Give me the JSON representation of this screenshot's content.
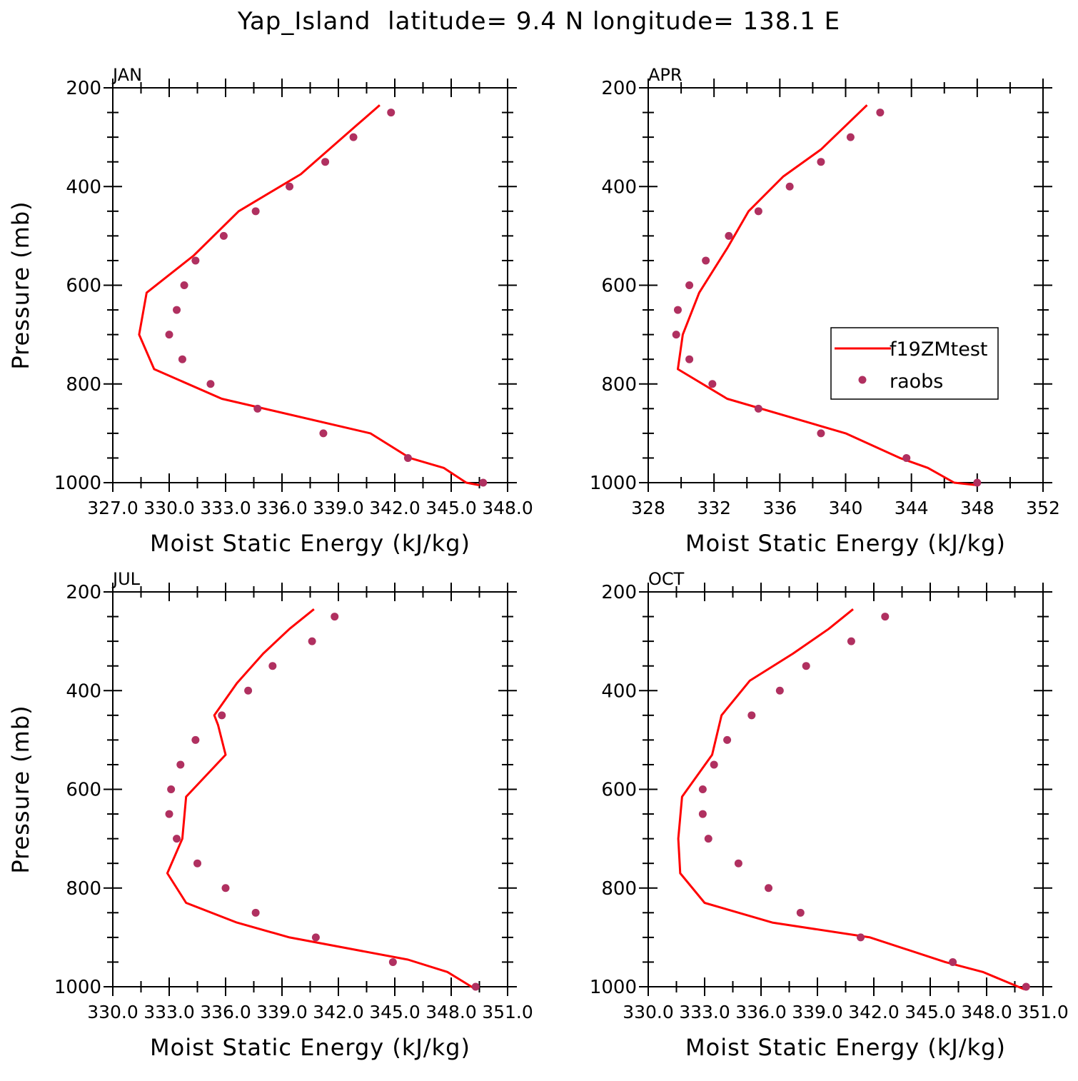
{
  "title": "Yap_Island  latitude= 9.4 N longitude= 138.1 E",
  "colors": {
    "model": "#ff0000",
    "obs": "#b03060",
    "axis": "#000000"
  },
  "legend": {
    "model_label": "f19ZMtest",
    "obs_label": "raobs",
    "location": "APR panel, right-middle"
  },
  "chart_data": [
    {
      "type": "line",
      "panel_label": "JAN",
      "xlabel": "Moist Static Energy (kJ/kg)",
      "ylabel": "Pressure (mb)",
      "xlim": [
        327,
        348
      ],
      "ylim": [
        1000,
        200
      ],
      "xtick_labels": [
        "327.0",
        "330.0",
        "333.0",
        "336.0",
        "339.0",
        "342.0",
        "345.0",
        "348.0"
      ],
      "ytick_labels": [
        "200",
        "400",
        "600",
        "800",
        "1000"
      ],
      "series": [
        {
          "name": "f19ZMtest",
          "style": "line",
          "x": [
            341.2,
            340.0,
            337.0,
            333.7,
            331.3,
            328.8,
            328.4,
            329.2,
            332.8,
            340.7,
            342.8,
            344.6,
            345.8,
            346.5
          ],
          "y": [
            235,
            275,
            375,
            450,
            540,
            615,
            700,
            770,
            830,
            900,
            950,
            970,
            1000,
            1005
          ]
        },
        {
          "name": "raobs",
          "style": "marker",
          "x": [
            341.8,
            339.8,
            338.3,
            336.4,
            334.6,
            332.9,
            331.4,
            330.8,
            330.4,
            330.0,
            330.7,
            332.2,
            334.7,
            338.2,
            342.7,
            346.7
          ],
          "y": [
            250,
            300,
            350,
            400,
            450,
            500,
            550,
            600,
            650,
            700,
            750,
            800,
            850,
            900,
            950,
            1000
          ]
        }
      ]
    },
    {
      "type": "line",
      "panel_label": "APR",
      "xlabel": "Moist Static Energy (kJ/kg)",
      "ylabel": "",
      "xlim": [
        328,
        352
      ],
      "ylim": [
        1000,
        200
      ],
      "xtick_labels": [
        "328",
        "332",
        "336",
        "340",
        "344",
        "348",
        "352"
      ],
      "ytick_labels": [
        "200",
        "400",
        "600",
        "800",
        "1000"
      ],
      "series": [
        {
          "name": "f19ZMtest",
          "style": "line",
          "x": [
            341.3,
            338.5,
            336.2,
            334.1,
            332.8,
            331.1,
            330.1,
            329.8,
            332.8,
            340.0,
            343.3,
            345.0,
            346.6,
            348.0
          ],
          "y": [
            235,
            325,
            380,
            450,
            525,
            615,
            700,
            770,
            830,
            900,
            950,
            970,
            1000,
            1005
          ]
        },
        {
          "name": "raobs",
          "style": "marker",
          "x": [
            342.1,
            340.3,
            338.5,
            336.6,
            334.7,
            332.9,
            331.5,
            330.5,
            329.8,
            329.7,
            330.5,
            331.9,
            334.7,
            338.5,
            343.7,
            348.0
          ],
          "y": [
            250,
            300,
            350,
            400,
            450,
            500,
            550,
            600,
            650,
            700,
            750,
            800,
            850,
            900,
            950,
            1000
          ]
        }
      ]
    },
    {
      "type": "line",
      "panel_label": "JUL",
      "xlabel": "Moist Static Energy (kJ/kg)",
      "ylabel": "Pressure (mb)",
      "xlim": [
        330,
        351
      ],
      "ylim": [
        1000,
        200
      ],
      "xtick_labels": [
        "330.0",
        "333.0",
        "336.0",
        "339.0",
        "342.0",
        "345.0",
        "348.0",
        "351.0"
      ],
      "ytick_labels": [
        "200",
        "400",
        "600",
        "800",
        "1000"
      ],
      "series": [
        {
          "name": "f19ZMtest",
          "style": "line",
          "x": [
            340.7,
            339.4,
            338.0,
            336.6,
            335.4,
            335.6,
            336.0,
            333.9,
            333.7,
            332.9,
            333.9,
            336.6,
            339.4,
            345.7,
            347.8,
            349.3
          ],
          "y": [
            235,
            275,
            325,
            385,
            450,
            470,
            530,
            615,
            700,
            770,
            830,
            870,
            900,
            945,
            970,
            1005
          ]
        },
        {
          "name": "raobs",
          "style": "marker",
          "x": [
            341.8,
            340.6,
            338.5,
            337.2,
            335.8,
            334.4,
            333.6,
            333.1,
            333.0,
            333.4,
            334.5,
            336.0,
            337.6,
            340.8,
            344.9,
            349.3
          ],
          "y": [
            250,
            300,
            350,
            400,
            450,
            500,
            550,
            600,
            650,
            700,
            750,
            800,
            850,
            900,
            950,
            1000
          ]
        }
      ]
    },
    {
      "type": "line",
      "panel_label": "OCT",
      "xlabel": "Moist Static Energy (kJ/kg)",
      "ylabel": "",
      "xlim": [
        330,
        351
      ],
      "ylim": [
        1000,
        200
      ],
      "xtick_labels": [
        "330.0",
        "333.0",
        "336.0",
        "339.0",
        "342.0",
        "345.0",
        "348.0",
        "351.0"
      ],
      "ytick_labels": [
        "200",
        "400",
        "600",
        "800",
        "1000"
      ],
      "series": [
        {
          "name": "f19ZMtest",
          "style": "line",
          "x": [
            340.9,
            339.6,
            337.7,
            335.4,
            333.9,
            333.4,
            331.8,
            331.6,
            331.7,
            333.0,
            336.6,
            341.8,
            345.8,
            347.8,
            350.0
          ],
          "y": [
            235,
            275,
            325,
            380,
            450,
            530,
            615,
            700,
            770,
            830,
            870,
            900,
            950,
            970,
            1005
          ]
        },
        {
          "name": "raobs",
          "style": "marker",
          "x": [
            342.6,
            340.8,
            338.4,
            337.0,
            335.5,
            334.2,
            333.5,
            332.9,
            332.9,
            333.2,
            334.8,
            336.4,
            338.1,
            341.3,
            346.2,
            350.1
          ],
          "y": [
            250,
            300,
            350,
            400,
            450,
            500,
            550,
            600,
            650,
            700,
            750,
            800,
            850,
            900,
            950,
            1000
          ]
        }
      ]
    }
  ]
}
